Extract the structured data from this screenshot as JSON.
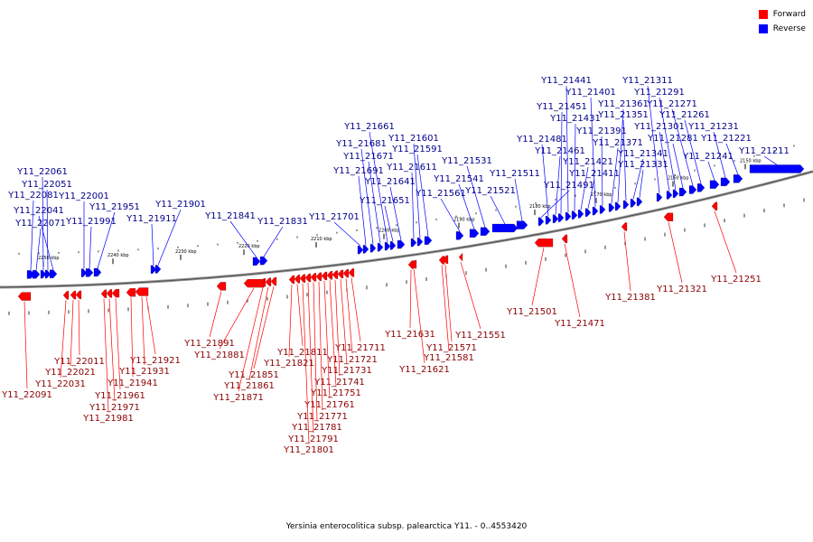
{
  "legend": {
    "forward_label": "Forward",
    "reverse_label": "Reverse",
    "forward_color": "#ff0000",
    "reverse_color": "#0000ff"
  },
  "caption": "Yersinia enterocolitica subsp. palearctica Y11. - 0..4553420",
  "ticks": [
    "2150 kbp",
    "2160 kbp",
    "2170 kbp",
    "2180 kbp",
    "2190 kbp",
    "2200 kbp",
    "2210 kbp",
    "2220 kbp",
    "2230 kbp",
    "2240 kbp",
    "2250 kbp"
  ],
  "reverse_genes": [
    "Y11_21211",
    "Y11_21221",
    "Y11_21231",
    "Y11_21241",
    "Y11_21261",
    "Y11_21271",
    "Y11_21281",
    "Y11_21291",
    "Y11_21301",
    "Y11_21311",
    "Y11_21331",
    "Y11_21341",
    "Y11_21351",
    "Y11_21361",
    "Y11_21371",
    "Y11_21391",
    "Y11_21401",
    "Y11_21411",
    "Y11_21421",
    "Y11_21431",
    "Y11_21441",
    "Y11_21451",
    "Y11_21461",
    "Y11_21481",
    "Y11_21491",
    "Y11_21511",
    "Y11_21521",
    "Y11_21531",
    "Y11_21541",
    "Y11_21561",
    "Y11_21591",
    "Y11_21601",
    "Y11_21611",
    "Y11_21641",
    "Y11_21651",
    "Y11_21661",
    "Y11_21671",
    "Y11_21681",
    "Y11_21691",
    "Y11_21701",
    "Y11_21831",
    "Y11_21841",
    "Y11_21901",
    "Y11_21911",
    "Y11_21951",
    "Y11_21991",
    "Y11_22001",
    "Y11_22041",
    "Y11_22051",
    "Y11_22061",
    "Y11_22071",
    "Y11_22081"
  ],
  "forward_genes": [
    "Y11_21251",
    "Y11_21321",
    "Y11_21381",
    "Y11_21471",
    "Y11_21501",
    "Y11_21551",
    "Y11_21571",
    "Y11_21581",
    "Y11_21621",
    "Y11_21631",
    "Y11_21711",
    "Y11_21721",
    "Y11_21731",
    "Y11_21741",
    "Y11_21751",
    "Y11_21761",
    "Y11_21771",
    "Y11_21781",
    "Y11_21791",
    "Y11_21801",
    "Y11_21811",
    "Y11_21821",
    "Y11_21851",
    "Y11_21861",
    "Y11_21871",
    "Y11_21881",
    "Y11_21891",
    "Y11_21921",
    "Y11_21931",
    "Y11_21941",
    "Y11_21961",
    "Y11_21971",
    "Y11_21981",
    "Y11_22011",
    "Y11_22021",
    "Y11_22031",
    "Y11_22091"
  ]
}
